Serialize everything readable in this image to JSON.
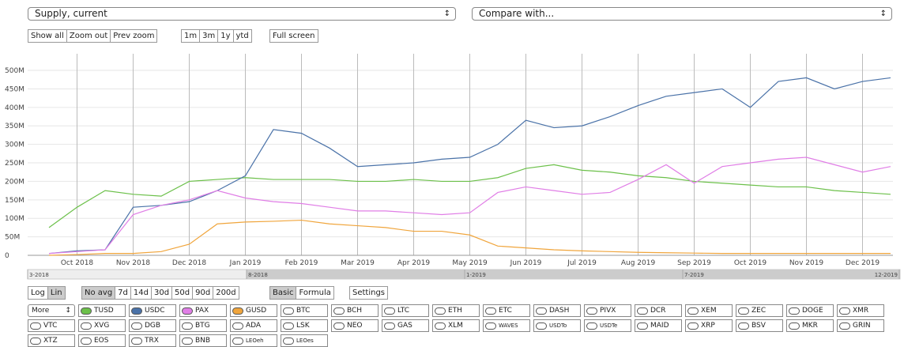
{
  "selectors": {
    "metric": "Supply, current",
    "compare": "Compare with..."
  },
  "zoom_buttons": [
    "Show all",
    "Zoom out",
    "Prev zoom"
  ],
  "range_buttons": [
    "1m",
    "3m",
    "1y",
    "ytd"
  ],
  "fullscreen": "Full screen",
  "chart_data": {
    "type": "line",
    "categories": [
      null,
      "Oct 2018",
      null,
      "Nov 2018",
      null,
      "Dec 2018",
      null,
      "Jan 2019",
      null,
      "Feb 2019",
      null,
      "Mar 2019",
      null,
      "Apr 2019",
      null,
      "May 2019",
      null,
      "Jun 2019",
      null,
      "Jul 2019",
      null,
      "Aug 2019",
      null,
      "Sep 2019",
      null,
      "Oct 2019",
      null,
      "Nov 2019",
      null,
      "Dec 2019",
      null
    ],
    "series": [
      {
        "name": "TUSD",
        "color": "#6cc04a",
        "values": [
          75,
          130,
          175,
          165,
          160,
          200,
          205,
          210,
          205,
          205,
          205,
          200,
          200,
          205,
          200,
          200,
          210,
          235,
          245,
          230,
          225,
          215,
          210,
          200,
          195,
          190,
          185,
          185,
          175,
          170,
          165
        ]
      },
      {
        "name": "USDC",
        "color": "#4a72a8",
        "values": [
          5,
          12,
          15,
          130,
          135,
          145,
          175,
          215,
          340,
          330,
          290,
          240,
          245,
          250,
          260,
          265,
          300,
          365,
          345,
          350,
          375,
          405,
          430,
          440,
          450,
          400,
          470,
          480,
          450,
          470,
          480
        ]
      },
      {
        "name": "PAX",
        "color": "#e07ee6",
        "values": [
          5,
          10,
          15,
          110,
          135,
          150,
          175,
          155,
          145,
          140,
          130,
          120,
          120,
          115,
          110,
          115,
          170,
          185,
          175,
          165,
          170,
          205,
          245,
          195,
          240,
          250,
          260,
          265,
          245,
          225,
          240
        ]
      },
      {
        "name": "GUSD",
        "color": "#f0a53c",
        "values": [
          0,
          2,
          5,
          5,
          10,
          30,
          85,
          90,
          92,
          95,
          85,
          80,
          75,
          65,
          65,
          55,
          25,
          20,
          15,
          12,
          10,
          8,
          7,
          6,
          5,
          5,
          5,
          5,
          5,
          5,
          5
        ]
      }
    ],
    "ylim": [
      0,
      545
    ],
    "yticks": [
      0,
      {
        "value": 50,
        "label": "50M"
      },
      {
        "value": 100,
        "label": "100M"
      },
      {
        "value": 150,
        "label": "150M"
      },
      {
        "value": 200,
        "label": "200M"
      },
      {
        "value": 250,
        "label": "250M"
      },
      {
        "value": 300,
        "label": "300M"
      },
      {
        "value": 350,
        "label": "350M"
      },
      {
        "value": 400,
        "label": "400M"
      },
      {
        "value": 450,
        "label": "450M"
      },
      {
        "value": 500,
        "label": "500M"
      }
    ],
    "grid": true
  },
  "navigator": {
    "labels": [
      "3-2018",
      "8-2018",
      "1-2019",
      "7-2019",
      "12-2019"
    ]
  },
  "scale_buttons": [
    "Log",
    "Lin"
  ],
  "avg_buttons": [
    "No avg",
    "7d",
    "14d",
    "30d",
    "50d",
    "90d",
    "200d"
  ],
  "mode_buttons": [
    "Basic",
    "Formula"
  ],
  "settings": "Settings",
  "more": "More",
  "coins": [
    "TUSD",
    "USDC",
    "PAX",
    "GUSD",
    "BTC",
    "BCH",
    "LTC",
    "ETH",
    "ETC",
    "DASH",
    "PIVX",
    "DCR",
    "XEM",
    "ZEC",
    "DOGE",
    "XMR",
    "VTC",
    "XVG",
    "DGB",
    "BTG",
    "ADA",
    "LSK",
    "NEO",
    "GAS",
    "XLM",
    "WAVES",
    "USDTo",
    "USDTe",
    "MAID",
    "XRP",
    "BSV",
    "MKR",
    "GRIN",
    "XTZ",
    "EOS",
    "TRX",
    "BNB",
    "LEOeh",
    "LEOes"
  ]
}
